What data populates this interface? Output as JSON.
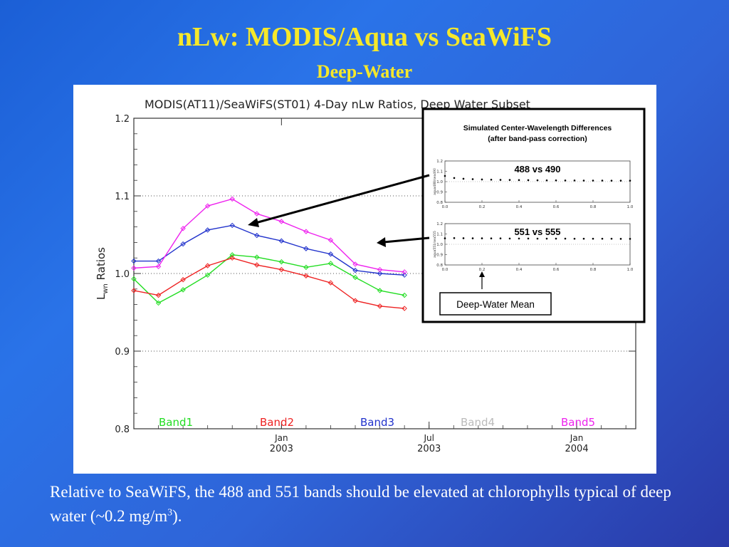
{
  "slide": {
    "title": "nLw: MODIS/Aqua vs SeaWiFS",
    "subtitle": "Deep-Water",
    "caption_main": "Relative to SeaWiFS, the 488 and 551 bands should be elevated at chlorophylls typical of deep water (~0.2 mg/m",
    "caption_sup": "3",
    "caption_end": ")."
  },
  "colors": {
    "title": "#f6e82a",
    "band1": "#22dd22",
    "band2": "#ee2222",
    "band3": "#2233cc",
    "band4": "#bbbbbb",
    "band5": "#ee22ee"
  },
  "chart_data": {
    "type": "line",
    "title": "MODIS(AT11)/SeaWiFS(ST01) 4-Day nLw Ratios, Deep Water Subset",
    "ylabel_main": "L",
    "ylabel_sub": "wn",
    "ylabel_rest": " Ratios",
    "ylim": [
      0.8,
      1.2
    ],
    "yticks": [
      "0.8",
      "0.9",
      "1.0",
      "1.1",
      "1.2"
    ],
    "xlim": [
      0,
      20.4
    ],
    "xticks": [
      {
        "pos": 6.0,
        "month": "Jan",
        "year": "2003"
      },
      {
        "pos": 12.0,
        "month": "Jul",
        "year": "2003"
      },
      {
        "pos": 18.0,
        "month": "Jan",
        "year": "2004"
      }
    ],
    "grid": "dotted horizontal at 0.9, 1.0, 1.1",
    "legend_placement": "bottom",
    "series": [
      {
        "name": "Band1",
        "color": "#22dd22",
        "x": [
          0,
          1,
          2,
          3,
          4,
          5,
          6,
          7,
          8,
          9,
          10,
          11
        ],
        "y": [
          0.993,
          0.962,
          0.979,
          0.998,
          1.024,
          1.021,
          1.015,
          1.008,
          1.013,
          0.995,
          0.978,
          0.972
        ]
      },
      {
        "name": "Band2",
        "color": "#ee2222",
        "x": [
          0,
          1,
          2,
          3,
          4,
          5,
          6,
          7,
          8,
          9,
          10,
          11
        ],
        "y": [
          0.978,
          0.972,
          0.992,
          1.01,
          1.02,
          1.011,
          1.005,
          0.997,
          0.988,
          0.965,
          0.958,
          0.955
        ]
      },
      {
        "name": "Band3",
        "color": "#2233cc",
        "x": [
          0,
          1,
          2,
          3,
          4,
          5,
          6,
          7,
          8,
          9,
          10,
          11
        ],
        "y": [
          1.016,
          1.016,
          1.038,
          1.056,
          1.062,
          1.049,
          1.042,
          1.032,
          1.025,
          1.004,
          1.0,
          0.998
        ]
      },
      {
        "name": "Band4",
        "color": "#bbbbbb",
        "x": [],
        "y": []
      },
      {
        "name": "Band5",
        "color": "#ee22ee",
        "x": [
          0,
          1,
          2,
          3,
          4,
          5,
          6,
          7,
          8,
          9,
          10,
          11
        ],
        "y": [
          1.007,
          1.009,
          1.058,
          1.087,
          1.096,
          1.077,
          1.067,
          1.054,
          1.043,
          1.012,
          1.005,
          1.002
        ]
      }
    ]
  },
  "inset": {
    "title_line1": "Simulated Center-Wavelength Differences",
    "title_line2": "(after band-pass correction)",
    "mean_label": "Deep-Water Mean",
    "plots": [
      {
        "label": "488 vs 490",
        "ylabel": "aqua488/sea490",
        "ylim": [
          0.8,
          1.2
        ],
        "yticks": [
          "1.2",
          "1.1",
          "1.0",
          "0.9",
          "0.8"
        ],
        "xticks": [
          "0.0",
          "0.2",
          "0.4",
          "0.6",
          "0.8",
          "1.0"
        ],
        "x": [
          0.0,
          0.05,
          0.1,
          0.15,
          0.2,
          0.25,
          0.3,
          0.35,
          0.4,
          0.45,
          0.5,
          0.55,
          0.6,
          0.65,
          0.7,
          0.75,
          0.8,
          0.85,
          0.9,
          0.95,
          1.0
        ],
        "y": [
          1.055,
          1.035,
          1.028,
          1.024,
          1.021,
          1.019,
          1.017,
          1.016,
          1.015,
          1.014,
          1.013,
          1.012,
          1.012,
          1.011,
          1.011,
          1.01,
          1.01,
          1.01,
          1.009,
          1.009,
          1.009
        ]
      },
      {
        "label": "551 vs 555",
        "ylabel": "aqua551/sea555",
        "ylim": [
          0.8,
          1.2
        ],
        "yticks": [
          "1.2",
          "1.1",
          "1.0",
          "0.9",
          "0.8"
        ],
        "xticks": [
          "0.0",
          "0.2",
          "0.4",
          "0.6",
          "0.8",
          "1.0"
        ],
        "x": [
          0.0,
          0.05,
          0.1,
          0.15,
          0.2,
          0.25,
          0.3,
          0.35,
          0.4,
          0.45,
          0.5,
          0.55,
          0.6,
          0.65,
          0.7,
          0.75,
          0.8,
          0.85,
          0.9,
          0.95,
          1.0
        ],
        "y": [
          1.058,
          1.06,
          1.059,
          1.058,
          1.058,
          1.057,
          1.057,
          1.056,
          1.056,
          1.056,
          1.055,
          1.055,
          1.055,
          1.055,
          1.054,
          1.054,
          1.054,
          1.054,
          1.054,
          1.053,
          1.053
        ]
      }
    ]
  }
}
